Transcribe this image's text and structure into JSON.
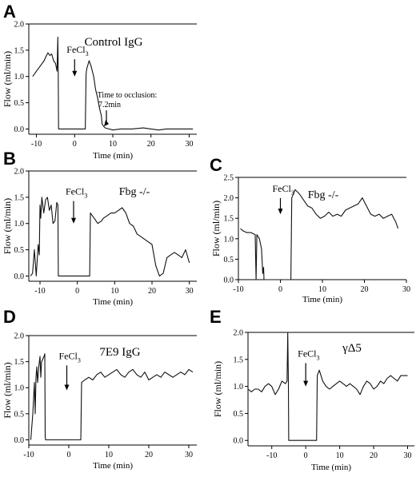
{
  "chart_data": [
    {
      "id": "A",
      "type": "line",
      "panel_label": "A",
      "title": "Control IgG",
      "xlabel": "Time (min)",
      "ylabel": "Flow (ml/min)",
      "xlim": [
        -12,
        32
      ],
      "ylim": [
        -0.1,
        2.0
      ],
      "xticks": [
        -10,
        0,
        10,
        20,
        30
      ],
      "yticks": [
        0.0,
        0.5,
        1.0,
        1.5,
        2.0
      ],
      "grid": false,
      "annotations": [
        {
          "text": "FeCl",
          "sub": "3",
          "x": 0,
          "y": 1.45,
          "tip_y": 1.0
        },
        {
          "text": "Time to occlusion:",
          "text2": "7.2min",
          "x": 10,
          "y": 0.05
        }
      ],
      "series": [
        {
          "x": [
            -11,
            -10.5,
            -10,
            -9.5,
            -9,
            -8.5,
            -8,
            -7.5,
            -7,
            -6.5,
            -6,
            -5.5,
            -5,
            -4.6,
            -4.4,
            -4.3,
            -4.2,
            0,
            2.8,
            3.0,
            3.2,
            3.8,
            4.3,
            5.0,
            5.5,
            6.0,
            6.5,
            7.0,
            7.2,
            7.6,
            8,
            9,
            10,
            12,
            15,
            18,
            20,
            22,
            24,
            26,
            28,
            30,
            31
          ],
          "y": [
            1.0,
            1.05,
            1.1,
            1.15,
            1.2,
            1.25,
            1.3,
            1.38,
            1.45,
            1.4,
            1.43,
            1.3,
            1.25,
            1.1,
            1.75,
            1.05,
            0.0,
            0.0,
            0.0,
            1.05,
            1.15,
            1.3,
            1.2,
            1.0,
            0.75,
            0.6,
            0.4,
            0.25,
            0.1,
            0.05,
            0.02,
            0.0,
            -0.02,
            0.0,
            0.0,
            0.02,
            0.0,
            -0.02,
            0.0,
            0.0,
            0.0,
            0.0,
            0.0
          ]
        }
      ]
    },
    {
      "id": "B",
      "type": "line",
      "panel_label": "B",
      "title": "Fbg -/-",
      "xlabel": "Time (min)",
      "ylabel": "Flow (ml/min)",
      "xlim": [
        -13,
        32
      ],
      "ylim": [
        -0.1,
        2.0
      ],
      "xticks": [
        -10,
        0,
        10,
        20,
        30
      ],
      "yticks": [
        0.0,
        0.5,
        1.0,
        1.5,
        2.0
      ],
      "grid": false,
      "annotations": [
        {
          "text": "FeCl",
          "sub": "3",
          "x": -1,
          "y": 1.55,
          "tip_y": 1.0
        }
      ],
      "series": [
        {
          "x": [
            -12.5,
            -12,
            -11.5,
            -11,
            -10.5,
            -10.2,
            -10,
            -9.8,
            -9.5,
            -9,
            -8.5,
            -8,
            -7.5,
            -7,
            -6.5,
            -6,
            -5.5,
            -5.2,
            -5.1,
            3.3,
            3.5,
            4.5,
            5.5,
            6.5,
            7,
            8,
            9,
            10,
            11,
            12,
            13,
            14,
            15,
            16,
            17,
            18,
            19,
            20,
            21,
            22,
            23,
            24,
            25,
            26,
            27,
            28,
            29,
            30
          ],
          "y": [
            0.0,
            0.05,
            0.5,
            0.0,
            0.6,
            0.4,
            1.35,
            1.1,
            1.5,
            1.2,
            1.45,
            1.5,
            1.25,
            1.35,
            1.0,
            1.05,
            1.4,
            1.35,
            0.0,
            0.0,
            1.2,
            1.1,
            1.0,
            1.05,
            1.1,
            1.15,
            1.2,
            1.2,
            1.25,
            1.3,
            1.2,
            1.0,
            0.95,
            0.8,
            0.75,
            0.7,
            0.65,
            0.6,
            0.2,
            0.0,
            0.05,
            0.35,
            0.4,
            0.45,
            0.4,
            0.35,
            0.5,
            0.25
          ]
        }
      ]
    },
    {
      "id": "C",
      "type": "line",
      "panel_label": "C",
      "title": "Fbg -/-",
      "xlabel": "Time (min)",
      "ylabel": "Flow (ml/min)",
      "xlim": [
        -10,
        30
      ],
      "ylim": [
        0.0,
        2.5
      ],
      "xticks": [
        -10,
        0,
        10,
        20,
        30
      ],
      "yticks": [
        0.0,
        0.5,
        1.0,
        1.5,
        2.0,
        2.5
      ],
      "grid": false,
      "annotations": [
        {
          "text": "FeCl",
          "sub": "3",
          "x": 0,
          "y": 2.15,
          "tip_y": 1.6
        }
      ],
      "series": [
        {
          "x": [
            -9.5,
            -9,
            -8,
            -7,
            -6,
            -5.8,
            -5.6,
            -5,
            -4.5,
            -4.2,
            -4,
            -3.9,
            -3.8,
            2.5,
            2.7,
            3.5,
            4.5,
            5.5,
            6.5,
            7.5,
            8.5,
            9.5,
            10.5,
            11.5,
            12.5,
            13.5,
            14.5,
            15.5,
            16.5,
            17.5,
            18.5,
            19.5,
            20.5,
            21.5,
            22.5,
            23.5,
            24.5,
            25.5,
            26.5,
            27.5,
            28
          ],
          "y": [
            1.25,
            1.2,
            1.15,
            1.15,
            1.1,
            0.0,
            1.1,
            1.0,
            0.75,
            0.15,
            0.3,
            0.0,
            0.0,
            0.0,
            2.0,
            2.2,
            2.1,
            1.95,
            1.8,
            1.75,
            1.6,
            1.5,
            1.55,
            1.65,
            1.55,
            1.6,
            1.55,
            1.7,
            1.75,
            1.8,
            1.85,
            2.0,
            1.8,
            1.6,
            1.55,
            1.6,
            1.5,
            1.55,
            1.6,
            1.4,
            1.25
          ]
        }
      ]
    },
    {
      "id": "D",
      "type": "line",
      "panel_label": "D",
      "title": "7E9 IgG",
      "xlabel": "Time (min)",
      "ylabel": "Flow (ml/min)",
      "xlim": [
        -10,
        32
      ],
      "ylim": [
        -0.1,
        2.0
      ],
      "xticks": [
        -10,
        0,
        10,
        20,
        30
      ],
      "yticks": [
        0.0,
        0.5,
        1.0,
        1.5,
        2.0
      ],
      "grid": false,
      "annotations": [
        {
          "text": "FeCl",
          "sub": "3",
          "x": -0.5,
          "y": 1.55,
          "tip_y": 0.95
        }
      ],
      "series": [
        {
          "x": [
            -9.5,
            -9,
            -8.6,
            -8.4,
            -8.2,
            -8,
            -7.8,
            -7.5,
            -7.2,
            -7,
            -6.8,
            -6.5,
            -6.2,
            -6.0,
            -5.9,
            -5.8,
            3.0,
            3.2,
            4,
            5,
            6,
            7,
            8,
            9,
            10,
            11,
            12,
            13,
            14,
            15,
            16,
            17,
            18,
            19,
            20,
            21,
            22,
            23,
            24,
            25,
            26,
            27,
            28,
            29,
            30,
            31
          ],
          "y": [
            0.0,
            0.5,
            1.1,
            0.5,
            1.2,
            1.4,
            1.1,
            1.4,
            1.6,
            1.2,
            1.5,
            1.55,
            1.6,
            1.65,
            0.05,
            0.0,
            0.0,
            1.1,
            1.15,
            1.2,
            1.15,
            1.25,
            1.3,
            1.2,
            1.25,
            1.3,
            1.35,
            1.25,
            1.2,
            1.3,
            1.35,
            1.25,
            1.2,
            1.3,
            1.15,
            1.2,
            1.25,
            1.2,
            1.3,
            1.25,
            1.2,
            1.25,
            1.3,
            1.25,
            1.35,
            1.3
          ]
        }
      ]
    },
    {
      "id": "E",
      "type": "line",
      "panel_label": "E",
      "title": "γΔ5",
      "xlabel": "Time (min)",
      "ylabel": "Flow (ml/min)",
      "xlim": [
        -17,
        32
      ],
      "ylim": [
        -0.1,
        2.0
      ],
      "xticks": [
        -10,
        0,
        10,
        20,
        30
      ],
      "yticks": [
        0.0,
        0.5,
        1.0,
        1.5,
        2.0
      ],
      "grid": false,
      "annotations": [
        {
          "text": "FeCl",
          "sub": "3",
          "x": 0,
          "y": 1.55,
          "tip_y": 1.0
        }
      ],
      "series": [
        {
          "x": [
            -17,
            -16,
            -15,
            -14,
            -13,
            -12,
            -11,
            -10,
            -9,
            -8,
            -7,
            -6,
            -5.5,
            -5.3,
            -5.1,
            -5.0,
            3.2,
            3.4,
            4,
            5,
            6,
            7,
            8,
            9,
            10,
            11,
            12,
            13,
            14,
            15,
            16,
            17,
            18,
            19,
            20,
            21,
            22,
            23,
            24,
            25,
            26,
            27,
            28,
            29,
            30
          ],
          "y": [
            0.95,
            0.9,
            0.95,
            0.95,
            0.9,
            1.0,
            1.05,
            1.0,
            0.85,
            0.95,
            1.1,
            1.05,
            1.1,
            2.0,
            1.05,
            0.0,
            0.0,
            1.2,
            1.3,
            1.1,
            1.0,
            0.95,
            1.0,
            1.05,
            1.1,
            1.05,
            1.0,
            1.05,
            1.0,
            0.95,
            0.85,
            1.0,
            1.1,
            1.05,
            0.95,
            1.0,
            1.1,
            1.05,
            1.15,
            1.2,
            1.15,
            1.1,
            1.2,
            1.2,
            1.2
          ]
        }
      ]
    }
  ]
}
